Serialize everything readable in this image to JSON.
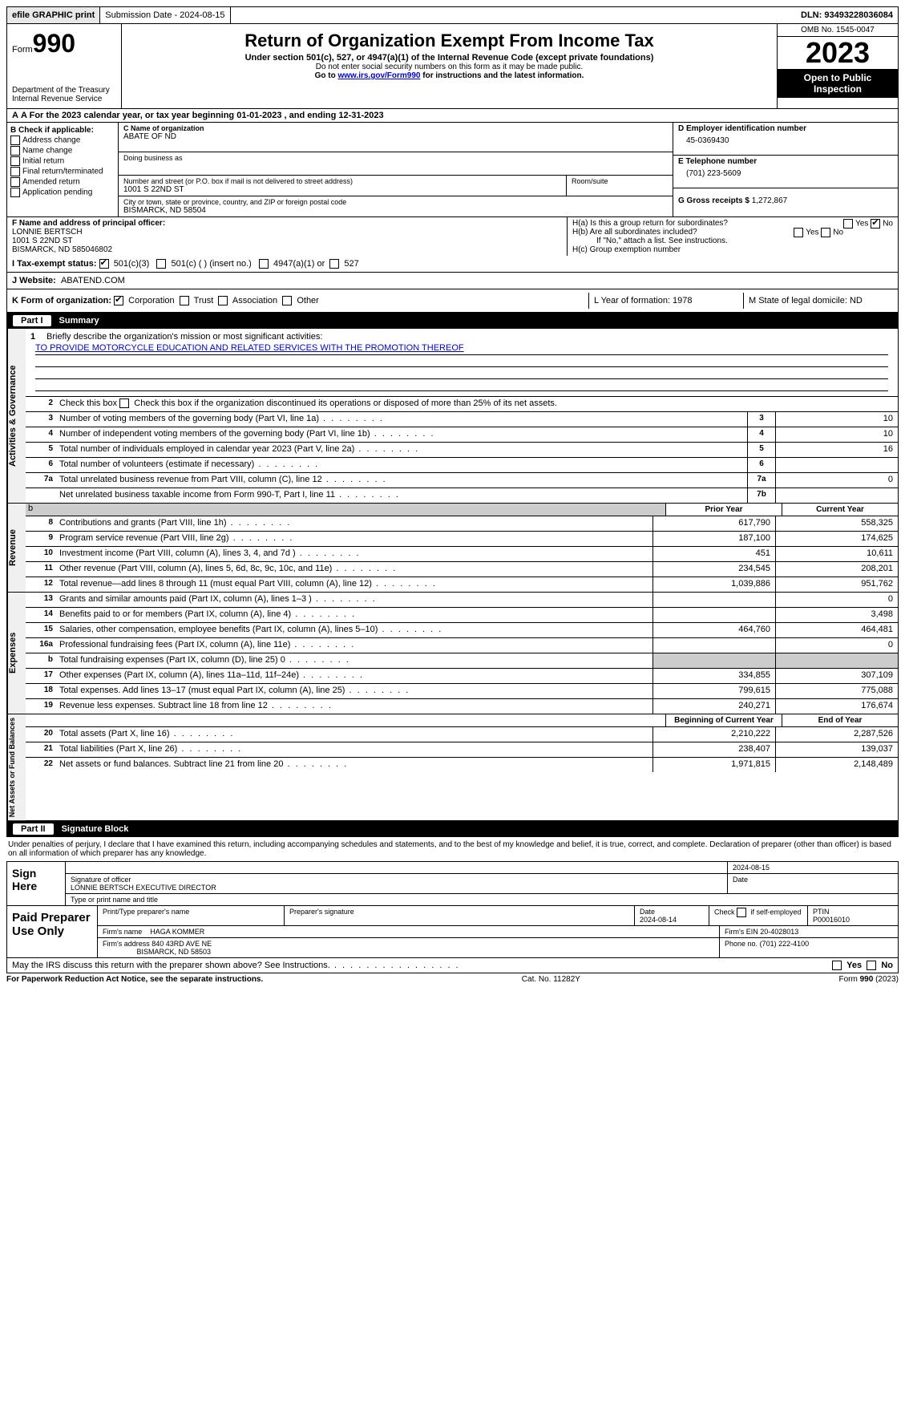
{
  "topbar": {
    "efile": "efile GRAPHIC print",
    "submission": "Submission Date - 2024-08-15",
    "dln": "DLN: 93493228036084"
  },
  "header": {
    "form_prefix": "Form",
    "form_num": "990",
    "dept": "Department of the Treasury Internal Revenue Service",
    "title": "Return of Organization Exempt From Income Tax",
    "sub": "Under section 501(c), 527, or 4947(a)(1) of the Internal Revenue Code (except private foundations)",
    "note1": "Do not enter social security numbers on this form as it may be made public.",
    "note2_pre": "Go to ",
    "note2_link": "www.irs.gov/Form990",
    "note2_post": " for instructions and the latest information.",
    "omb": "OMB No. 1545-0047",
    "year": "2023",
    "open": "Open to Public Inspection"
  },
  "rowA": "A For the 2023 calendar year, or tax year beginning 01-01-2023   , and ending 12-31-2023",
  "boxB": {
    "title": "B Check if applicable:",
    "opts": [
      "Address change",
      "Name change",
      "Initial return",
      "Final return/terminated",
      "Amended return",
      "Application pending"
    ]
  },
  "boxC": {
    "name_lbl": "C Name of organization",
    "name": "ABATE OF ND",
    "dba_lbl": "Doing business as",
    "street_lbl": "Number and street (or P.O. box if mail is not delivered to street address)",
    "street": "1001 S 22ND ST",
    "room_lbl": "Room/suite",
    "city_lbl": "City or town, state or province, country, and ZIP or foreign postal code",
    "city": "BISMARCK, ND  58504"
  },
  "boxD": {
    "lbl": "D Employer identification number",
    "val": "45-0369430"
  },
  "boxE": {
    "lbl": "E Telephone number",
    "val": "(701) 223-5609"
  },
  "boxG": {
    "lbl": "G Gross receipts $",
    "val": "1,272,867"
  },
  "boxF": {
    "lbl": "F  Name and address of principal officer:",
    "line1": "LONNIE BERTSCH",
    "line2": "1001 S 22ND ST",
    "line3": "BISMARCK, ND  585046802"
  },
  "boxH": {
    "ha": "H(a)  Is this a group return for subordinates?",
    "hb": "H(b)  Are all subordinates included?",
    "hb_note": "If \"No,\" attach a list. See instructions.",
    "hc": "H(c)  Group exemption number"
  },
  "rowI": {
    "lbl": "I    Tax-exempt status:",
    "o1": "501(c)(3)",
    "o2": "501(c) (  ) (insert no.)",
    "o3": "4947(a)(1) or",
    "o4": "527"
  },
  "rowJ": {
    "lbl": "J   Website:",
    "val": "ABATEND.COM"
  },
  "rowK": {
    "lbl": "K Form of organization:",
    "o1": "Corporation",
    "o2": "Trust",
    "o3": "Association",
    "o4": "Other",
    "L": "L Year of formation: 1978",
    "M": "M State of legal domicile: ND"
  },
  "part1": {
    "label": "Part I",
    "title": "Summary",
    "tabs": [
      "Activities & Governance",
      "Revenue",
      "Expenses",
      "Net Assets or Fund Balances"
    ],
    "line1_lbl": "Briefly describe the organization's mission or most significant activities:",
    "mission": "TO PROVIDE MOTORCYCLE EDUCATION AND RELATED SERVICES WITH THE PROMOTION THEREOF",
    "line2": "Check this box      if the organization discontinued its operations or disposed of more than 25% of its net assets.",
    "gov_rows": [
      {
        "n": "3",
        "t": "Number of voting members of the governing body (Part VI, line 1a)",
        "box": "3",
        "v": "10"
      },
      {
        "n": "4",
        "t": "Number of independent voting members of the governing body (Part VI, line 1b)",
        "box": "4",
        "v": "10"
      },
      {
        "n": "5",
        "t": "Total number of individuals employed in calendar year 2023 (Part V, line 2a)",
        "box": "5",
        "v": "16"
      },
      {
        "n": "6",
        "t": "Total number of volunteers (estimate if necessary)",
        "box": "6",
        "v": ""
      },
      {
        "n": "7a",
        "t": "Total unrelated business revenue from Part VIII, column (C), line 12",
        "box": "7a",
        "v": "0"
      },
      {
        "n": "",
        "t": "Net unrelated business taxable income from Form 990-T, Part I, line 11",
        "box": "7b",
        "v": ""
      }
    ],
    "col_prior": "Prior Year",
    "col_current": "Current Year",
    "rev_rows": [
      {
        "n": "8",
        "t": "Contributions and grants (Part VIII, line 1h)",
        "p": "617,790",
        "c": "558,325"
      },
      {
        "n": "9",
        "t": "Program service revenue (Part VIII, line 2g)",
        "p": "187,100",
        "c": "174,625"
      },
      {
        "n": "10",
        "t": "Investment income (Part VIII, column (A), lines 3, 4, and 7d )",
        "p": "451",
        "c": "10,611"
      },
      {
        "n": "11",
        "t": "Other revenue (Part VIII, column (A), lines 5, 6d, 8c, 9c, 10c, and 11e)",
        "p": "234,545",
        "c": "208,201"
      },
      {
        "n": "12",
        "t": "Total revenue—add lines 8 through 11 (must equal Part VIII, column (A), line 12)",
        "p": "1,039,886",
        "c": "951,762"
      }
    ],
    "exp_rows": [
      {
        "n": "13",
        "t": "Grants and similar amounts paid (Part IX, column (A), lines 1–3 )",
        "p": "",
        "c": "0"
      },
      {
        "n": "14",
        "t": "Benefits paid to or for members (Part IX, column (A), line 4)",
        "p": "",
        "c": "3,498"
      },
      {
        "n": "15",
        "t": "Salaries, other compensation, employee benefits (Part IX, column (A), lines 5–10)",
        "p": "464,760",
        "c": "464,481"
      },
      {
        "n": "16a",
        "t": "Professional fundraising fees (Part IX, column (A), line 11e)",
        "p": "",
        "c": "0"
      },
      {
        "n": "b",
        "t": "Total fundraising expenses (Part IX, column (D), line 25) 0",
        "p": "SHADE",
        "c": "SHADE"
      },
      {
        "n": "17",
        "t": "Other expenses (Part IX, column (A), lines 11a–11d, 11f–24e)",
        "p": "334,855",
        "c": "307,109"
      },
      {
        "n": "18",
        "t": "Total expenses. Add lines 13–17 (must equal Part IX, column (A), line 25)",
        "p": "799,615",
        "c": "775,088"
      },
      {
        "n": "19",
        "t": "Revenue less expenses. Subtract line 18 from line 12",
        "p": "240,271",
        "c": "176,674"
      }
    ],
    "col_begin": "Beginning of Current Year",
    "col_end": "End of Year",
    "net_rows": [
      {
        "n": "20",
        "t": "Total assets (Part X, line 16)",
        "p": "2,210,222",
        "c": "2,287,526"
      },
      {
        "n": "21",
        "t": "Total liabilities (Part X, line 26)",
        "p": "238,407",
        "c": "139,037"
      },
      {
        "n": "22",
        "t": "Net assets or fund balances. Subtract line 21 from line 20",
        "p": "1,971,815",
        "c": "2,148,489"
      }
    ]
  },
  "part2": {
    "label": "Part II",
    "title": "Signature Block",
    "intro": "Under penalties of perjury, I declare that I have examined this return, including accompanying schedules and statements, and to the best of my knowledge and belief, it is true, correct, and complete. Declaration of preparer (other than officer) is based on all information of which preparer has any knowledge.",
    "sign_here": "Sign Here",
    "sig_date": "2024-08-15",
    "sig_officer_lbl": "Signature of officer",
    "sig_officer": "LONNIE BERTSCH  EXECUTIVE DIRECTOR",
    "sig_name_lbl": "Type or print name and title",
    "date_lbl": "Date",
    "paid": "Paid Preparer Use Only",
    "prep_name_lbl": "Print/Type preparer's name",
    "prep_sig_lbl": "Preparer's signature",
    "prep_date_lbl": "Date",
    "prep_date": "2024-08-14",
    "self_emp": "Check       if self-employed",
    "ptin_lbl": "PTIN",
    "ptin": "P00016010",
    "firm_name_lbl": "Firm's name",
    "firm_name": "HAGA KOMMER",
    "firm_ein_lbl": "Firm's EIN",
    "firm_ein": "20-4028013",
    "firm_addr_lbl": "Firm's address",
    "firm_addr1": "840 43RD AVE NE",
    "firm_addr2": "BISMARCK, ND  58503",
    "phone_lbl": "Phone no.",
    "phone": "(701) 222-4100",
    "may_irs": "May the IRS discuss this return with the preparer shown above? See Instructions."
  },
  "footer": {
    "left": "For Paperwork Reduction Act Notice, see the separate instructions.",
    "mid": "Cat. No. 11282Y",
    "right": "Form 990 (2023)"
  },
  "yn": {
    "yes": "Yes",
    "no": "No"
  }
}
